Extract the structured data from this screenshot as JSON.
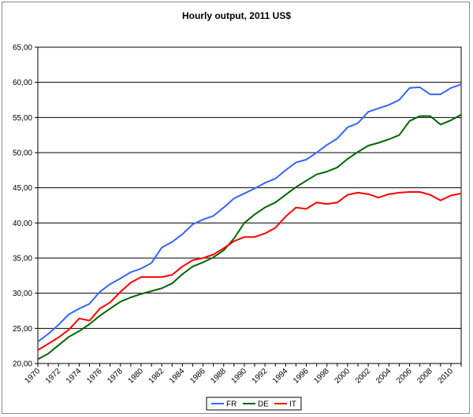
{
  "chart_data": {
    "type": "line",
    "title": "Hourly output, 2011 US$",
    "xlabel": "",
    "ylabel": "",
    "ylim": [
      20,
      65
    ],
    "xlim": [
      1970,
      2011
    ],
    "yticks": [
      "20,00",
      "25,00",
      "30,00",
      "35,00",
      "40,00",
      "45,00",
      "50,00",
      "55,00",
      "60,00",
      "65,00"
    ],
    "xticks": [
      "1970",
      "1972",
      "1974",
      "1976",
      "1978",
      "1980",
      "1982",
      "1984",
      "1986",
      "1988",
      "1990",
      "1992",
      "1994",
      "1996",
      "1998",
      "2000",
      "2002",
      "2004",
      "2006",
      "2008",
      "2010"
    ],
    "grid": "horizontal",
    "legend_position": "bottom",
    "x": [
      1970,
      1971,
      1972,
      1973,
      1974,
      1975,
      1976,
      1977,
      1978,
      1979,
      1980,
      1981,
      1982,
      1983,
      1984,
      1985,
      1986,
      1987,
      1988,
      1989,
      1990,
      1991,
      1992,
      1993,
      1994,
      1995,
      1996,
      1997,
      1998,
      1999,
      2000,
      2001,
      2002,
      2003,
      2004,
      2005,
      2006,
      2007,
      2008,
      2009,
      2010,
      2011
    ],
    "series": [
      {
        "name": "FR",
        "color": "#3366ff",
        "values": [
          23.1,
          24.2,
          25.5,
          27.0,
          27.8,
          28.5,
          30.2,
          31.3,
          32.1,
          33.0,
          33.5,
          34.3,
          36.5,
          37.3,
          38.4,
          39.8,
          40.5,
          41.0,
          42.2,
          43.5,
          44.2,
          44.9,
          45.7,
          46.3,
          47.5,
          48.6,
          49.0,
          50.0,
          51.1,
          52.0,
          53.6,
          54.2,
          55.8,
          56.3,
          56.8,
          57.5,
          59.2,
          59.3,
          58.3,
          58.3,
          59.2,
          59.7
        ]
      },
      {
        "name": "DE",
        "color": "#006600",
        "values": [
          20.6,
          21.4,
          22.6,
          23.8,
          24.6,
          25.6,
          26.8,
          27.8,
          28.8,
          29.4,
          29.9,
          30.3,
          30.7,
          31.4,
          32.7,
          33.8,
          34.4,
          35.1,
          36.1,
          37.8,
          40.0,
          41.2,
          42.2,
          42.9,
          44.0,
          45.1,
          46.0,
          46.9,
          47.3,
          47.9,
          49.1,
          50.1,
          51.0,
          51.4,
          51.9,
          52.5,
          54.5,
          55.2,
          55.2,
          54.0,
          54.6,
          55.4
        ]
      },
      {
        "name": "IT",
        "color": "#ff0000",
        "values": [
          21.9,
          22.8,
          23.7,
          24.8,
          26.4,
          26.1,
          27.8,
          28.7,
          30.2,
          31.5,
          32.3,
          32.3,
          32.3,
          32.6,
          33.8,
          34.7,
          35.0,
          35.5,
          36.4,
          37.4,
          38.0,
          38.0,
          38.5,
          39.3,
          40.9,
          42.2,
          42.0,
          42.9,
          42.7,
          42.9,
          44.0,
          44.3,
          44.1,
          43.6,
          44.1,
          44.3,
          44.4,
          44.4,
          44.0,
          43.2,
          43.9,
          44.2
        ]
      }
    ]
  }
}
